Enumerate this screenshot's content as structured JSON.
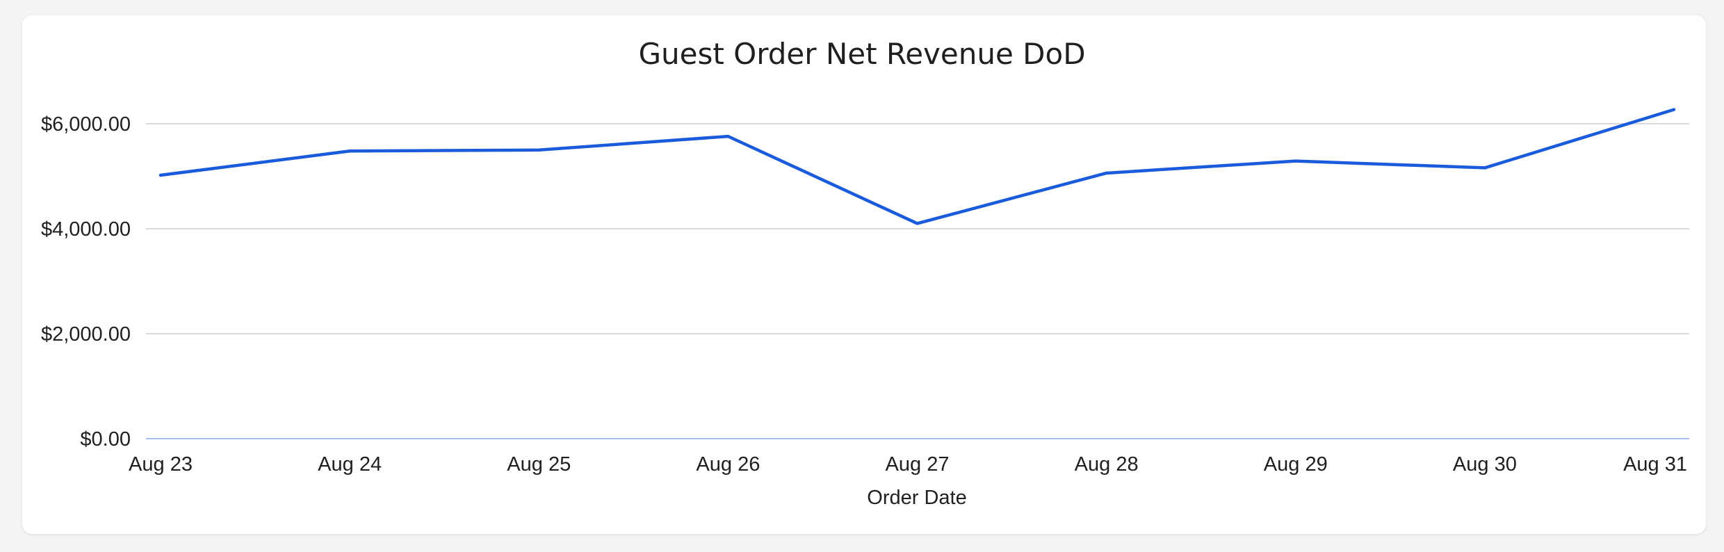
{
  "chart_data": {
    "type": "line",
    "title": "Guest Order Net Revenue DoD",
    "xlabel": "Order Date",
    "ylabel": "",
    "categories": [
      "Aug 23",
      "Aug 24",
      "Aug 25",
      "Aug 26",
      "Aug 27",
      "Aug 28",
      "Aug 29",
      "Aug 30",
      "Aug 31"
    ],
    "series": [
      {
        "name": "Net Revenue",
        "color": "#1a5bdc",
        "values": [
          5020,
          5480,
          5500,
          5760,
          4100,
          5060,
          5290,
          5160,
          6270
        ]
      }
    ],
    "ylim": [
      0,
      6000
    ],
    "yticks": [
      0,
      2000,
      4000,
      6000
    ],
    "ytick_labels": [
      "$0.00",
      "$2,000.00",
      "$4,000.00",
      "$6,000.00"
    ],
    "grid": true,
    "legend": "none"
  }
}
